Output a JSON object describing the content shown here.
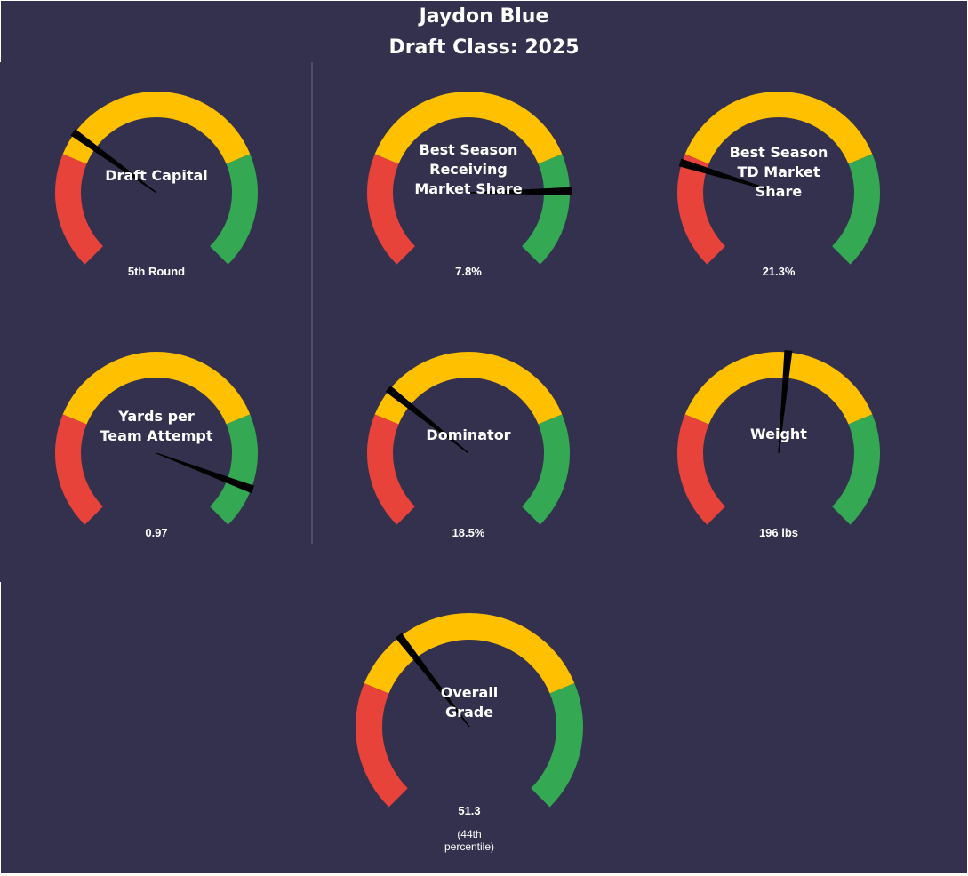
{
  "header": {
    "player_name": "Jaydon Blue",
    "draft_class": "Draft Class: 2025"
  },
  "colors": {
    "background": "#33314d",
    "low": "#e8433a",
    "mid": "#ffc000",
    "high": "#34a853",
    "needle": "#000000",
    "text": "#ffffff",
    "divider": "#6b6a85"
  },
  "chart_data": {
    "type": "gauge",
    "scale": [
      0,
      100
    ],
    "bands": [
      {
        "name": "low",
        "from": 0,
        "to": 25
      },
      {
        "name": "mid",
        "from": 25,
        "to": 75
      },
      {
        "name": "high",
        "from": 75,
        "to": 100
      }
    ],
    "gauges": [
      {
        "id": "draft-capital",
        "label": "Draft Capital",
        "value_text": "5th Round",
        "needle_pct": 30
      },
      {
        "id": "receiving-market-share",
        "label": "Best Season\nReceiving\nMarket Share",
        "value_text": "7.8%",
        "needle_pct": 83
      },
      {
        "id": "td-market-share",
        "label": "Best Season\nTD Market\nShare",
        "value_text": "21.3%",
        "needle_pct": 23
      },
      {
        "id": "yards-per-team-attempt",
        "label": "Yards per\nTeam Attempt",
        "value_text": "0.97",
        "needle_pct": 91
      },
      {
        "id": "dominator",
        "label": "Dominator",
        "value_text": "18.5%",
        "needle_pct": 31
      },
      {
        "id": "weight",
        "label": "Weight",
        "value_text": "196 lbs",
        "needle_pct": 52
      },
      {
        "id": "overall-grade",
        "label": "Overall\nGrade",
        "value_text": "51.3",
        "note": "(44th\npercentile)",
        "needle_pct": 36
      }
    ]
  }
}
